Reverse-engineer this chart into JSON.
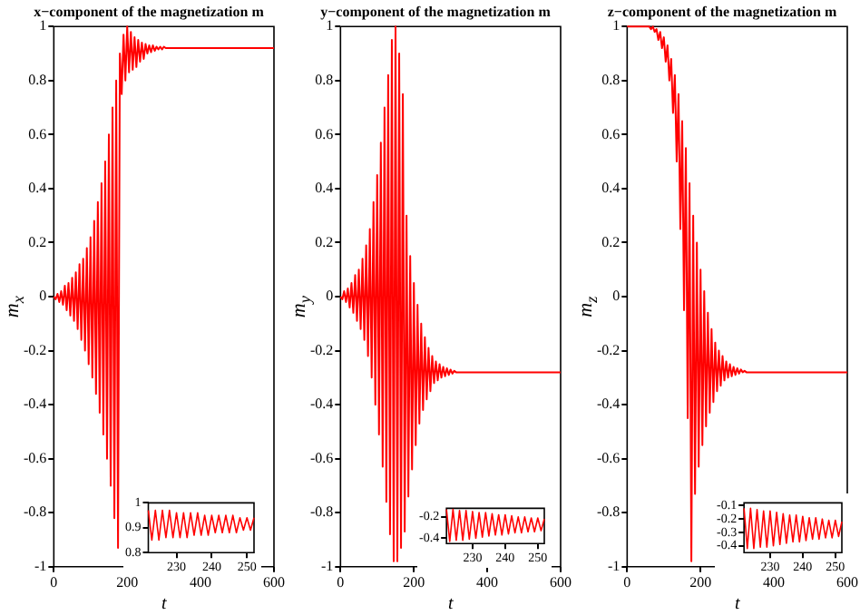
{
  "chart_data": [
    {
      "type": "line",
      "title": "x−component of the magnetization m",
      "xlabel": "t",
      "ylabel": "m$_{x}$",
      "xlim": [
        0,
        600
      ],
      "xticks": [
        0,
        200,
        400,
        600
      ],
      "ylim": [
        -1,
        1
      ],
      "yticks": [
        -1,
        -0.8,
        -0.6,
        -0.4,
        -0.2,
        0,
        0.2,
        0.4,
        0.6,
        0.8,
        1
      ],
      "series": [
        {
          "color": "#ff0000",
          "x": [
            0,
            5,
            10,
            15,
            20,
            25,
            30,
            35,
            40,
            45,
            50,
            55,
            60,
            65,
            70,
            75,
            80,
            85,
            90,
            95,
            100,
            105,
            110,
            115,
            120,
            125,
            130,
            135,
            140,
            145,
            150,
            155,
            160,
            165,
            170,
            175,
            180,
            185,
            190,
            195,
            200,
            205,
            210,
            215,
            220,
            225,
            230,
            235,
            240,
            245,
            250,
            255,
            260,
            265,
            270,
            275,
            280,
            285,
            290,
            295,
            300,
            305,
            310,
            315,
            320,
            325,
            330,
            335,
            340,
            345,
            350,
            600
          ],
          "values": [
            0,
            -0.01,
            0.01,
            -0.02,
            0.02,
            -0.03,
            0.04,
            -0.05,
            0.05,
            -0.07,
            0.07,
            -0.09,
            0.09,
            -0.12,
            0.12,
            -0.16,
            0.14,
            -0.2,
            0.18,
            -0.25,
            0.22,
            -0.3,
            0.28,
            -0.36,
            0.35,
            -0.43,
            0.42,
            -0.51,
            0.5,
            -0.6,
            0.6,
            -0.7,
            0.7,
            -0.82,
            0.8,
            -0.93,
            0.9,
            0.75,
            0.97,
            0.8,
            1.0,
            0.83,
            0.98,
            0.84,
            0.96,
            0.85,
            0.95,
            0.87,
            0.94,
            0.88,
            0.935,
            0.9,
            0.93,
            0.905,
            0.93,
            0.91,
            0.925,
            0.915,
            0.925,
            0.915,
            0.925,
            0.92,
            0.92,
            0.92,
            0.92,
            0.92,
            0.92,
            0.92,
            0.92,
            0.92,
            0.92,
            0.92
          ]
        }
      ]
    },
    {
      "type": "line",
      "title": "y−component of the magnetization m",
      "xlabel": "t",
      "ylabel": "m$_{y}$",
      "xlim": [
        0,
        600
      ],
      "xticks": [
        0,
        200,
        400,
        600
      ],
      "ylim": [
        -1,
        1
      ],
      "yticks": [
        -1,
        -0.8,
        -0.6,
        -0.4,
        -0.2,
        0,
        0.2,
        0.4,
        0.6,
        0.8,
        1
      ],
      "series": [
        {
          "color": "#ff0000",
          "x": [
            0,
            5,
            10,
            15,
            20,
            25,
            30,
            35,
            40,
            45,
            50,
            55,
            60,
            65,
            70,
            75,
            80,
            85,
            90,
            95,
            100,
            105,
            110,
            115,
            120,
            125,
            130,
            135,
            140,
            145,
            150,
            155,
            160,
            165,
            170,
            175,
            180,
            185,
            190,
            195,
            200,
            205,
            210,
            215,
            220,
            225,
            230,
            235,
            240,
            245,
            250,
            255,
            260,
            265,
            270,
            275,
            280,
            285,
            290,
            295,
            300,
            305,
            310,
            315,
            320,
            325,
            330,
            335,
            340,
            345,
            350,
            600
          ],
          "values": [
            0,
            -0.01,
            0.02,
            -0.02,
            0.03,
            -0.04,
            0.05,
            -0.06,
            0.08,
            -0.09,
            0.1,
            -0.12,
            0.14,
            -0.16,
            0.19,
            -0.22,
            0.25,
            -0.3,
            0.35,
            -0.4,
            0.45,
            -0.51,
            0.57,
            -0.63,
            0.7,
            -0.76,
            0.82,
            -0.88,
            0.95,
            -0.98,
            1.0,
            -0.98,
            0.9,
            -0.93,
            0.75,
            -0.87,
            0.3,
            -0.74,
            0.15,
            -0.64,
            0.05,
            -0.55,
            -0.03,
            -0.47,
            -0.1,
            -0.42,
            -0.15,
            -0.38,
            -0.19,
            -0.35,
            -0.22,
            -0.32,
            -0.24,
            -0.31,
            -0.25,
            -0.3,
            -0.26,
            -0.295,
            -0.265,
            -0.29,
            -0.27,
            -0.285,
            -0.275,
            -0.28,
            -0.28,
            -0.28,
            -0.28,
            -0.28,
            -0.28,
            -0.28,
            -0.28,
            -0.28
          ]
        }
      ]
    },
    {
      "type": "line",
      "title": "z−component of the magnetization m",
      "xlabel": "t",
      "ylabel": "m$_{z}$",
      "xlim": [
        0,
        600
      ],
      "xticks": [
        0,
        200,
        400,
        600
      ],
      "ylim": [
        -1,
        1
      ],
      "yticks": [
        -1,
        -0.8,
        -0.6,
        -0.4,
        -0.2,
        0,
        0.2,
        0.4,
        0.6,
        0.8,
        1
      ],
      "series": [
        {
          "color": "#ff0000",
          "x": [
            0,
            5,
            10,
            15,
            20,
            25,
            30,
            35,
            40,
            45,
            50,
            55,
            60,
            65,
            70,
            75,
            80,
            85,
            90,
            95,
            100,
            105,
            110,
            115,
            120,
            125,
            130,
            135,
            140,
            145,
            150,
            155,
            160,
            165,
            170,
            175,
            180,
            185,
            190,
            195,
            200,
            205,
            210,
            215,
            220,
            225,
            230,
            235,
            240,
            245,
            250,
            255,
            260,
            265,
            270,
            275,
            280,
            285,
            290,
            295,
            300,
            305,
            310,
            315,
            320,
            325,
            330,
            335,
            340,
            345,
            350,
            600
          ],
          "values": [
            1,
            1,
            1,
            1,
            1,
            1,
            1,
            1,
            1,
            1,
            1,
            1,
            1,
            0.99,
            1,
            0.98,
            0.99,
            0.95,
            0.98,
            0.92,
            0.96,
            0.87,
            0.93,
            0.8,
            0.88,
            0.68,
            0.82,
            0.5,
            0.75,
            0.25,
            0.65,
            -0.05,
            0.55,
            -0.45,
            0.42,
            -0.98,
            0.3,
            -0.73,
            0.2,
            -0.63,
            0.1,
            -0.55,
            0.02,
            -0.48,
            -0.06,
            -0.43,
            -0.12,
            -0.39,
            -0.17,
            -0.35,
            -0.2,
            -0.33,
            -0.22,
            -0.31,
            -0.24,
            -0.3,
            -0.25,
            -0.295,
            -0.26,
            -0.29,
            -0.265,
            -0.285,
            -0.27,
            -0.28,
            -0.275,
            -0.28,
            -0.28,
            -0.28,
            -0.28,
            -0.28,
            -0.28,
            -0.28
          ]
        }
      ]
    },
    {
      "type": "line",
      "xlim": [
        222,
        252
      ],
      "xticks": [
        230,
        240,
        250
      ],
      "ylim": [
        0.8,
        1
      ],
      "yticks": [
        0.8,
        0.9,
        1
      ],
      "series": [
        {
          "color": "#ff0000",
          "x": [
            222,
            223,
            224,
            225,
            226,
            227,
            228,
            229,
            230,
            231,
            232,
            233,
            234,
            235,
            236,
            237,
            238,
            239,
            240,
            241,
            242,
            243,
            244,
            245,
            246,
            247,
            248,
            249,
            250,
            251,
            252
          ],
          "values": [
            0.97,
            0.85,
            0.97,
            0.85,
            0.97,
            0.86,
            0.97,
            0.86,
            0.96,
            0.86,
            0.96,
            0.86,
            0.96,
            0.87,
            0.96,
            0.87,
            0.95,
            0.87,
            0.95,
            0.88,
            0.95,
            0.88,
            0.95,
            0.88,
            0.95,
            0.88,
            0.94,
            0.89,
            0.94,
            0.89,
            0.94
          ]
        }
      ]
    },
    {
      "type": "line",
      "xlim": [
        222,
        252
      ],
      "xticks": [
        230,
        240,
        250
      ],
      "ylim": [
        -0.45,
        -0.12
      ],
      "yticks": [
        -0.4,
        -0.2
      ],
      "series": [
        {
          "color": "#ff0000",
          "x": [
            222,
            223,
            224,
            225,
            226,
            227,
            228,
            229,
            230,
            231,
            232,
            233,
            234,
            235,
            236,
            237,
            238,
            239,
            240,
            241,
            242,
            243,
            244,
            245,
            246,
            247,
            248,
            249,
            250,
            251,
            252
          ],
          "values": [
            -0.13,
            -0.43,
            -0.13,
            -0.42,
            -0.14,
            -0.42,
            -0.14,
            -0.41,
            -0.15,
            -0.4,
            -0.16,
            -0.39,
            -0.16,
            -0.38,
            -0.17,
            -0.37,
            -0.18,
            -0.37,
            -0.18,
            -0.36,
            -0.19,
            -0.35,
            -0.2,
            -0.35,
            -0.2,
            -0.34,
            -0.21,
            -0.34,
            -0.21,
            -0.33,
            -0.22
          ]
        }
      ]
    },
    {
      "type": "line",
      "xlim": [
        222,
        252
      ],
      "xticks": [
        230,
        240,
        250
      ],
      "ylim": [
        -0.45,
        -0.08
      ],
      "yticks": [
        -0.4,
        -0.3,
        -0.2,
        -0.1
      ],
      "series": [
        {
          "color": "#ff0000",
          "x": [
            222,
            223,
            224,
            225,
            226,
            227,
            228,
            229,
            230,
            231,
            232,
            233,
            234,
            235,
            236,
            237,
            238,
            239,
            240,
            241,
            242,
            243,
            244,
            245,
            246,
            247,
            248,
            249,
            250,
            251,
            252
          ],
          "values": [
            -0.12,
            -0.42,
            -0.12,
            -0.42,
            -0.13,
            -0.41,
            -0.14,
            -0.41,
            -0.14,
            -0.4,
            -0.15,
            -0.39,
            -0.16,
            -0.38,
            -0.17,
            -0.37,
            -0.17,
            -0.37,
            -0.18,
            -0.36,
            -0.19,
            -0.35,
            -0.19,
            -0.35,
            -0.2,
            -0.34,
            -0.21,
            -0.34,
            -0.21,
            -0.33,
            -0.22
          ]
        }
      ]
    }
  ]
}
